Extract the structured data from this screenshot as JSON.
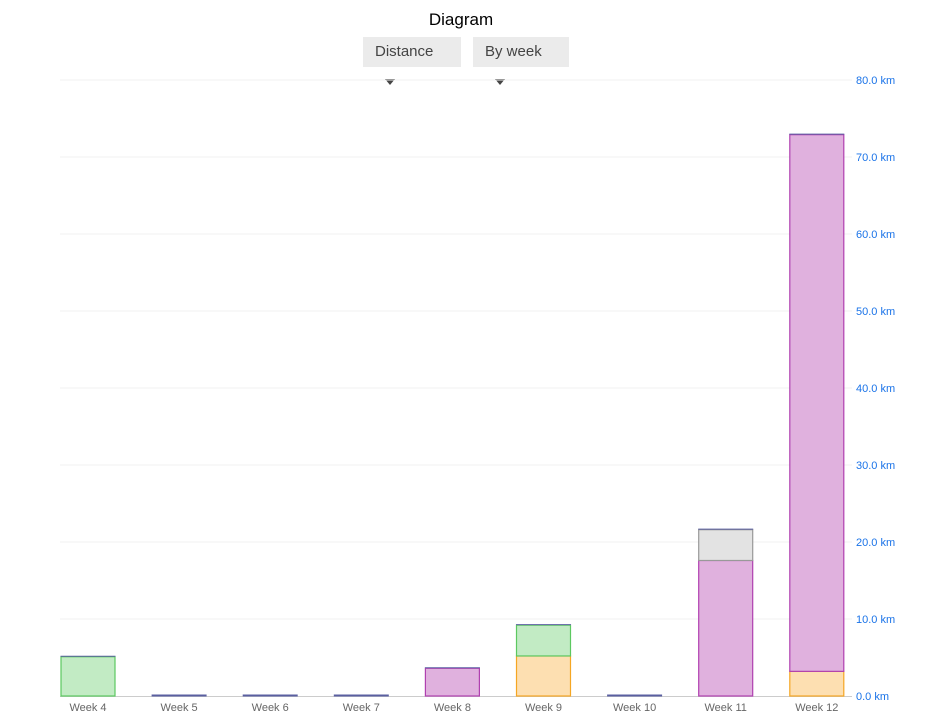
{
  "header": {
    "title": "Diagram",
    "metric_dropdown": "Distance",
    "period_dropdown": "By week"
  },
  "chart_data": {
    "type": "bar",
    "stacked": true,
    "categories": [
      "Week 4",
      "Week 5",
      "Week 6",
      "Week 7",
      "Week 8",
      "Week 9",
      "Week 10",
      "Week 11",
      "Week 12"
    ],
    "series": [
      {
        "color": "#fddfb1",
        "stroke": "#f5a623",
        "values": [
          0,
          0,
          0,
          0,
          0,
          5.2,
          0,
          0,
          3.2
        ]
      },
      {
        "color": "#e0b1de",
        "stroke": "#b040b0",
        "values": [
          0,
          0,
          0,
          0,
          3.6,
          0,
          0,
          17.6,
          69.7
        ]
      },
      {
        "color": "#c2ebc4",
        "stroke": "#5cc860",
        "values": [
          5.1,
          0,
          0,
          0,
          0,
          4.0,
          0,
          0,
          0
        ]
      },
      {
        "color": "#e3e3e3",
        "stroke": "#999999",
        "values": [
          0,
          0,
          0,
          0,
          0,
          0,
          0,
          4.0,
          0
        ]
      }
    ],
    "ylim": [
      0,
      80
    ],
    "yticks": [
      "0.0 km",
      "10.0 km",
      "20.0 km",
      "30.0 km",
      "40.0 km",
      "50.0 km",
      "60.0 km",
      "70.0 km",
      "80.0 km"
    ],
    "ytick_values": [
      0,
      10,
      20,
      30,
      40,
      50,
      60,
      70,
      80
    ],
    "y_axis_side": "right",
    "y_tick_color": "#1a73e8",
    "grid": true
  }
}
